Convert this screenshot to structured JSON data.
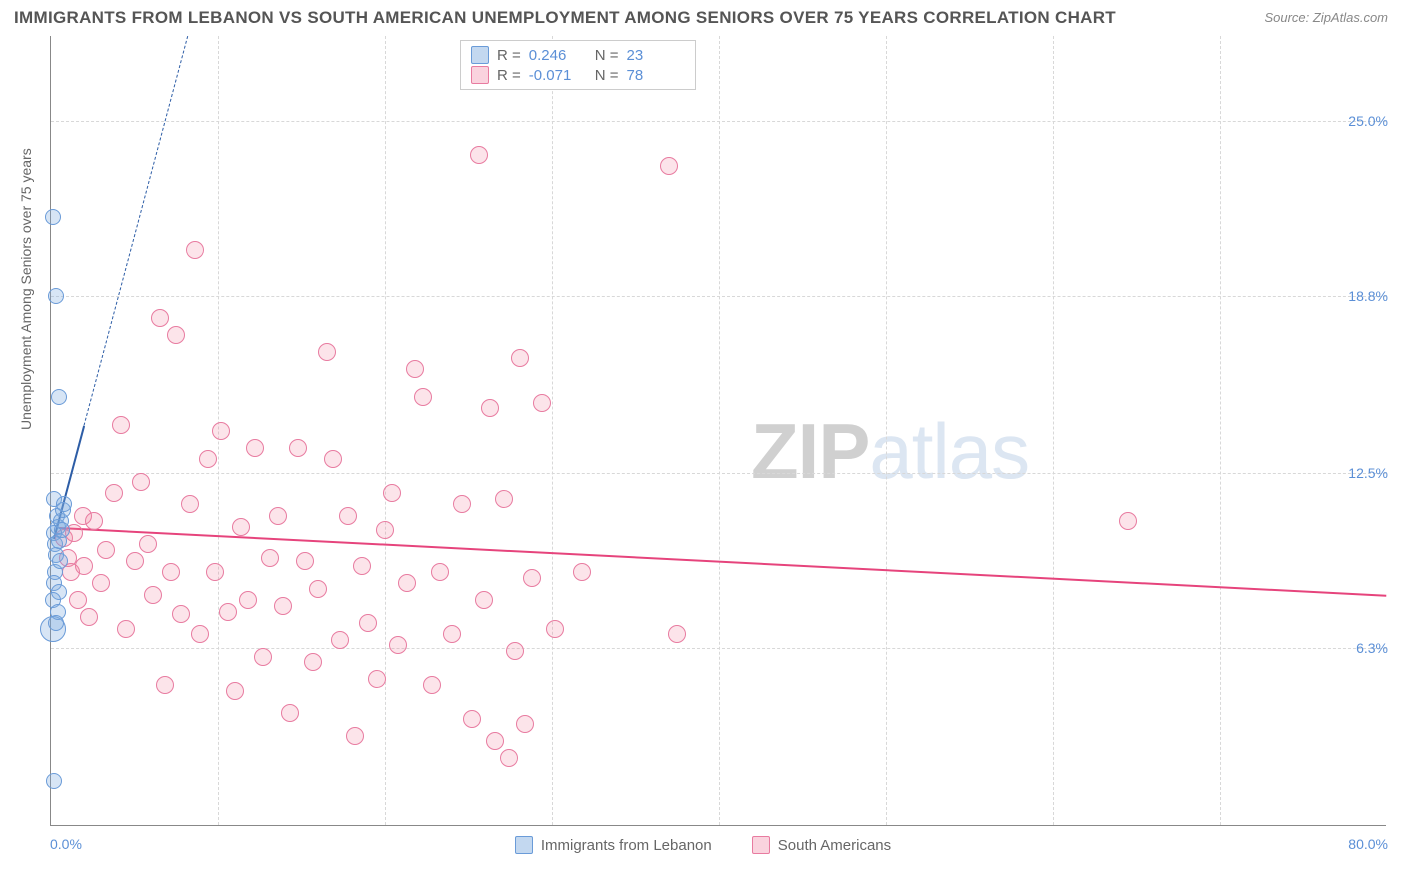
{
  "title": "IMMIGRANTS FROM LEBANON VS SOUTH AMERICAN UNEMPLOYMENT AMONG SENIORS OVER 75 YEARS CORRELATION CHART",
  "source": "Source: ZipAtlas.com",
  "ylabel": "Unemployment Among Seniors over 75 years",
  "watermark_zip": "ZIP",
  "watermark_atlas": "atlas",
  "chart": {
    "type": "scatter",
    "xlim": [
      0,
      80
    ],
    "ylim": [
      0,
      28
    ],
    "x_tick_format": "percent",
    "y_tick_format": "percent",
    "x_ticks_minor": [
      10,
      20,
      30,
      40,
      50,
      60,
      70
    ],
    "y_gridlines": [
      6.3,
      12.5,
      18.8,
      25.0
    ],
    "y_grid_labels": [
      "6.3%",
      "12.5%",
      "18.8%",
      "25.0%"
    ],
    "xmin_label": "0.0%",
    "xmax_label": "80.0%",
    "grid_color": "#d8d8d8",
    "axis_color": "#888888",
    "background_color": "#ffffff",
    "tick_label_color": "#5b8fd6",
    "marker_size_blue": 16,
    "marker_size_pink": 18,
    "marker_size_large": 26,
    "series": [
      {
        "name": "Immigrants from Lebanon",
        "color_fill": "rgba(122,168,222,0.30)",
        "color_stroke": "#6a9bd8",
        "trend_color": "#2d5da6",
        "trend_line": {
          "x1": 0.2,
          "y1": 10.2,
          "x2": 2.0,
          "y2": 14.2,
          "dashed_extend_to_y": 28
        },
        "R": "0.246",
        "N": "23",
        "points": [
          {
            "x": 0.1,
            "y": 7.0,
            "size": 26
          },
          {
            "x": 0.1,
            "y": 21.6
          },
          {
            "x": 0.3,
            "y": 18.8
          },
          {
            "x": 0.5,
            "y": 15.2
          },
          {
            "x": 0.2,
            "y": 11.6
          },
          {
            "x": 0.35,
            "y": 11.0
          },
          {
            "x": 0.4,
            "y": 10.6
          },
          {
            "x": 0.15,
            "y": 10.4
          },
          {
            "x": 0.25,
            "y": 10.0
          },
          {
            "x": 0.3,
            "y": 9.6
          },
          {
            "x": 0.25,
            "y": 9.0
          },
          {
            "x": 0.15,
            "y": 8.6
          },
          {
            "x": 0.45,
            "y": 8.3
          },
          {
            "x": 0.1,
            "y": 8.0
          },
          {
            "x": 0.4,
            "y": 7.6
          },
          {
            "x": 0.6,
            "y": 10.8
          },
          {
            "x": 0.7,
            "y": 11.2
          },
          {
            "x": 0.55,
            "y": 9.4
          },
          {
            "x": 0.2,
            "y": 1.6
          },
          {
            "x": 0.5,
            "y": 10.1
          },
          {
            "x": 0.65,
            "y": 10.5
          },
          {
            "x": 0.3,
            "y": 7.2
          },
          {
            "x": 0.8,
            "y": 11.4
          }
        ]
      },
      {
        "name": "South Americans",
        "color_fill": "rgba(240,130,160,0.22)",
        "color_stroke": "#e87ba0",
        "trend_color": "#e6447c",
        "trend_line": {
          "x1": 0.5,
          "y1": 10.6,
          "x2": 80,
          "y2": 8.2
        },
        "R": "-0.071",
        "N": "78",
        "points": [
          {
            "x": 0.8,
            "y": 10.2
          },
          {
            "x": 1.0,
            "y": 9.5
          },
          {
            "x": 1.2,
            "y": 9.0
          },
          {
            "x": 1.4,
            "y": 10.4
          },
          {
            "x": 1.6,
            "y": 8.0
          },
          {
            "x": 1.9,
            "y": 11.0
          },
          {
            "x": 2.0,
            "y": 9.2
          },
          {
            "x": 2.3,
            "y": 7.4
          },
          {
            "x": 2.6,
            "y": 10.8
          },
          {
            "x": 3.0,
            "y": 8.6
          },
          {
            "x": 3.3,
            "y": 9.8
          },
          {
            "x": 3.8,
            "y": 11.8
          },
          {
            "x": 4.2,
            "y": 14.2
          },
          {
            "x": 4.5,
            "y": 7.0
          },
          {
            "x": 5.0,
            "y": 9.4
          },
          {
            "x": 5.4,
            "y": 12.2
          },
          {
            "x": 5.8,
            "y": 10.0
          },
          {
            "x": 6.1,
            "y": 8.2
          },
          {
            "x": 6.5,
            "y": 18.0
          },
          {
            "x": 6.8,
            "y": 5.0
          },
          {
            "x": 7.2,
            "y": 9.0
          },
          {
            "x": 7.5,
            "y": 17.4
          },
          {
            "x": 7.8,
            "y": 7.5
          },
          {
            "x": 8.3,
            "y": 11.4
          },
          {
            "x": 8.6,
            "y": 20.4
          },
          {
            "x": 8.9,
            "y": 6.8
          },
          {
            "x": 9.4,
            "y": 13.0
          },
          {
            "x": 9.8,
            "y": 9.0
          },
          {
            "x": 10.2,
            "y": 14.0
          },
          {
            "x": 10.6,
            "y": 7.6
          },
          {
            "x": 11.0,
            "y": 4.8
          },
          {
            "x": 11.4,
            "y": 10.6
          },
          {
            "x": 11.8,
            "y": 8.0
          },
          {
            "x": 12.2,
            "y": 13.4
          },
          {
            "x": 12.7,
            "y": 6.0
          },
          {
            "x": 13.1,
            "y": 9.5
          },
          {
            "x": 13.6,
            "y": 11.0
          },
          {
            "x": 13.9,
            "y": 7.8
          },
          {
            "x": 14.3,
            "y": 4.0
          },
          {
            "x": 14.8,
            "y": 13.4
          },
          {
            "x": 15.2,
            "y": 9.4
          },
          {
            "x": 15.7,
            "y": 5.8
          },
          {
            "x": 16.0,
            "y": 8.4
          },
          {
            "x": 16.5,
            "y": 16.8
          },
          {
            "x": 16.9,
            "y": 13.0
          },
          {
            "x": 17.3,
            "y": 6.6
          },
          {
            "x": 17.8,
            "y": 11.0
          },
          {
            "x": 18.2,
            "y": 3.2
          },
          {
            "x": 18.6,
            "y": 9.2
          },
          {
            "x": 19.0,
            "y": 7.2
          },
          {
            "x": 19.5,
            "y": 5.2
          },
          {
            "x": 20.0,
            "y": 10.5
          },
          {
            "x": 20.4,
            "y": 11.8
          },
          {
            "x": 20.8,
            "y": 6.4
          },
          {
            "x": 21.3,
            "y": 8.6
          },
          {
            "x": 21.8,
            "y": 16.2
          },
          {
            "x": 22.3,
            "y": 15.2
          },
          {
            "x": 22.8,
            "y": 5.0
          },
          {
            "x": 23.3,
            "y": 9.0
          },
          {
            "x": 24.0,
            "y": 6.8
          },
          {
            "x": 24.6,
            "y": 11.4
          },
          {
            "x": 25.2,
            "y": 3.8
          },
          {
            "x": 25.6,
            "y": 23.8
          },
          {
            "x": 25.9,
            "y": 8.0
          },
          {
            "x": 26.3,
            "y": 14.8
          },
          {
            "x": 26.6,
            "y": 3.0
          },
          {
            "x": 27.1,
            "y": 11.6
          },
          {
            "x": 27.4,
            "y": 2.4
          },
          {
            "x": 27.8,
            "y": 6.2
          },
          {
            "x": 28.1,
            "y": 16.6
          },
          {
            "x": 28.4,
            "y": 3.6
          },
          {
            "x": 28.8,
            "y": 8.8
          },
          {
            "x": 29.4,
            "y": 15.0
          },
          {
            "x": 30.2,
            "y": 7.0
          },
          {
            "x": 31.8,
            "y": 9.0
          },
          {
            "x": 37.0,
            "y": 23.4
          },
          {
            "x": 37.5,
            "y": 6.8
          },
          {
            "x": 64.5,
            "y": 10.8
          }
        ]
      }
    ]
  },
  "legend_top": [
    {
      "swatch": "blue",
      "R_label": "R =",
      "R_val": "0.246",
      "N_label": "N =",
      "N_val": "23"
    },
    {
      "swatch": "pink",
      "R_label": "R =",
      "R_val": "-0.071",
      "N_label": "N =",
      "N_val": "78"
    }
  ],
  "legend_bottom": [
    {
      "swatch": "blue",
      "label": "Immigrants from Lebanon"
    },
    {
      "swatch": "pink",
      "label": "South Americans"
    }
  ]
}
